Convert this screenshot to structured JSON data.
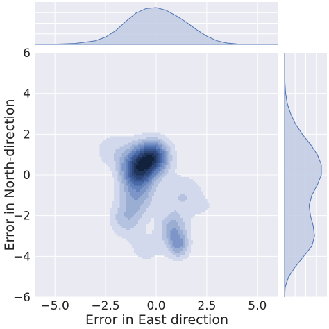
{
  "chart_data": {
    "type": "kde-jointplot",
    "xlabel": "Error in East direction",
    "ylabel": "Error in North-direction",
    "xlim": [
      -6,
      6
    ],
    "ylim": [
      -6,
      6
    ],
    "xticks": [
      -5.0,
      -2.5,
      0.0,
      2.5,
      5.0
    ],
    "xtick_labels": [
      "−5.0",
      "−2.5",
      "0.0",
      "2.5",
      "5.0"
    ],
    "yticks": [
      -6,
      -4,
      -2,
      0,
      2,
      4,
      6
    ],
    "ytick_labels": [
      "−6",
      "−4",
      "−2",
      "0",
      "2",
      "4",
      "6"
    ],
    "grid": true,
    "colors": {
      "background": "#eaeaf2",
      "grid": "#ffffff",
      "marginal_fill": "#c1cbe3",
      "marginal_line": "#4c72b0",
      "levels": [
        "#d2d9ec",
        "#b6c3e0",
        "#9aaed4",
        "#7e96c7",
        "#6381ba",
        "#4a6aa7",
        "#3a5791",
        "#2d4677",
        "#1f3459",
        "#12213c"
      ]
    },
    "density_components": [
      {
        "x": -0.9,
        "y": 0.3,
        "sx": 0.55,
        "sy": 0.7,
        "w": 1.0
      },
      {
        "x": -0.1,
        "y": 0.9,
        "sx": 0.5,
        "sy": 0.55,
        "w": 0.85
      },
      {
        "x": 0.8,
        "y": -2.6,
        "sx": 0.45,
        "sy": 0.55,
        "w": 0.35
      },
      {
        "x": 1.1,
        "y": -3.4,
        "sx": 0.35,
        "sy": 0.45,
        "w": 0.4
      },
      {
        "x": -1.5,
        "y": -2.2,
        "sx": 0.55,
        "sy": 0.55,
        "w": 0.25
      },
      {
        "x": -1.0,
        "y": -1.2,
        "sx": 0.6,
        "sy": 0.6,
        "w": 0.3
      },
      {
        "x": -2.2,
        "y": 1.2,
        "sx": 0.6,
        "sy": 0.6,
        "w": 0.15
      },
      {
        "x": 1.3,
        "y": -1.0,
        "sx": 0.7,
        "sy": 0.7,
        "w": 0.2
      },
      {
        "x": -0.5,
        "y": -3.6,
        "sx": 0.7,
        "sy": 0.6,
        "w": 0.12
      },
      {
        "x": 2.5,
        "y": -1.6,
        "sx": 0.6,
        "sy": 0.4,
        "w": 0.06
      }
    ],
    "marginal_x": {
      "x": [
        -6,
        -5,
        -4,
        -3,
        -2.5,
        -2,
        -1.5,
        -1,
        -0.5,
        0,
        0.5,
        1,
        1.5,
        2,
        2.5,
        3,
        3.5,
        4,
        5,
        6
      ],
      "density": [
        0.0,
        0.003,
        0.01,
        0.04,
        0.08,
        0.15,
        0.25,
        0.34,
        0.39,
        0.4,
        0.37,
        0.31,
        0.24,
        0.16,
        0.09,
        0.04,
        0.015,
        0.005,
        0.001,
        0.0
      ]
    },
    "marginal_y": {
      "y": [
        -6,
        -5.5,
        -5,
        -4.5,
        -4,
        -3.5,
        -3,
        -2.5,
        -2,
        -1.5,
        -1,
        -0.5,
        0,
        0.5,
        1,
        1.5,
        2,
        2.5,
        3,
        3.5,
        4,
        4.5,
        5,
        6
      ],
      "density": [
        0.0,
        0.005,
        0.03,
        0.08,
        0.14,
        0.2,
        0.22,
        0.21,
        0.19,
        0.18,
        0.2,
        0.24,
        0.27,
        0.27,
        0.24,
        0.19,
        0.13,
        0.08,
        0.045,
        0.02,
        0.008,
        0.003,
        0.001,
        0.0
      ]
    }
  }
}
